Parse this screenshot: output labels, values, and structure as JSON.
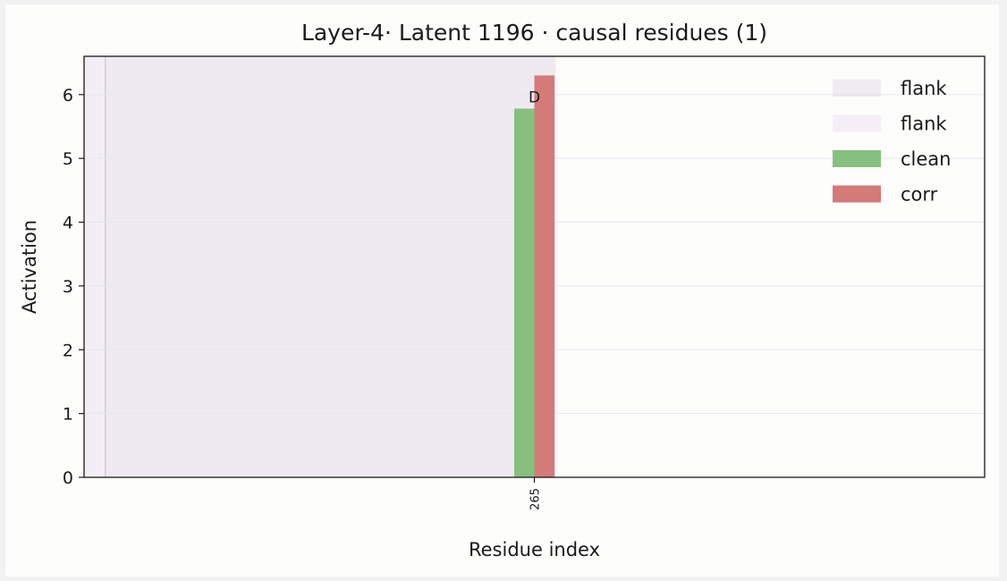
{
  "chart_data": {
    "type": "bar",
    "title": "Layer-4· Latent 1196 · causal residues (1)",
    "xlabel": "Residue index",
    "ylabel": "Activation",
    "xlim": [
      246,
      284
    ],
    "ylim": [
      0,
      6.6
    ],
    "yticks": [
      0,
      1,
      2,
      3,
      4,
      5,
      6
    ],
    "grid": true,
    "legend_position": "top-right",
    "categories": [
      "265"
    ],
    "category_x": [
      265
    ],
    "series": [
      {
        "name": "clean",
        "values": [
          5.78
        ],
        "color": "#86c07f"
      },
      {
        "name": "corr",
        "values": [
          6.3
        ],
        "color": "#d47a79"
      }
    ],
    "bar_annotations": [
      {
        "category": "265",
        "text": "D"
      }
    ],
    "shaded_regions": [
      {
        "name": "flank",
        "x": [
          246,
          265.9
        ],
        "color": "#e6dcea"
      },
      {
        "name": "flank",
        "x": [
          246.9,
          265.9
        ],
        "color": "#ece4f0"
      }
    ],
    "vlines": [
      {
        "x": 246.9,
        "color": "#d8c7e0"
      }
    ]
  }
}
